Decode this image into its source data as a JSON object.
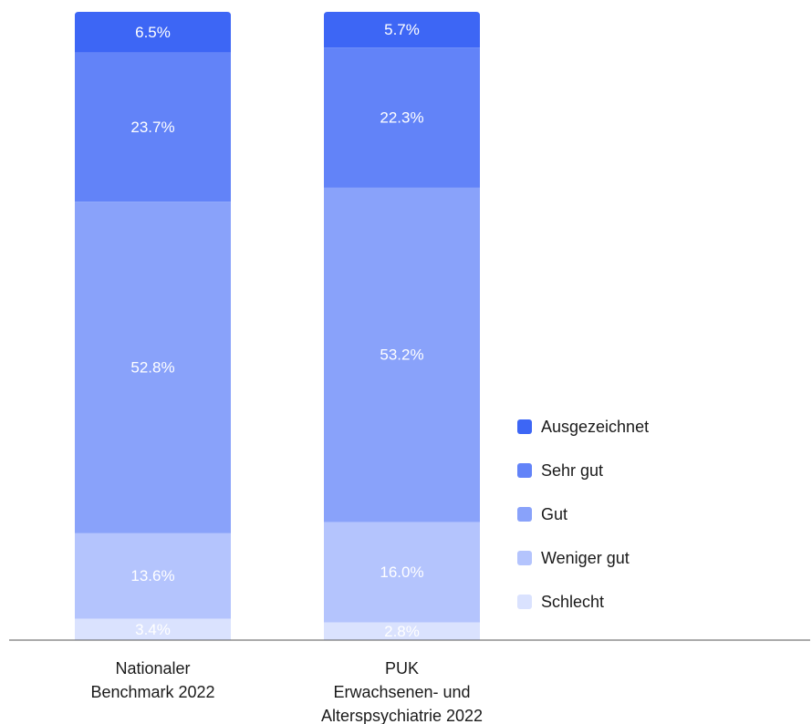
{
  "chart_data": {
    "type": "bar",
    "stacked": true,
    "categories": [
      [
        "Nationaler",
        "Benchmark 2022"
      ],
      [
        "PUK",
        "Erwachsenen- und",
        "Alterspsychiatrie 2022"
      ]
    ],
    "series": [
      {
        "name": "Ausgezeichnet",
        "color": "#3d66f5",
        "values": [
          6.5,
          5.7
        ],
        "labels": [
          "6.5%",
          "5.7%"
        ]
      },
      {
        "name": "Sehr gut",
        "color": "#6283f8",
        "values": [
          23.7,
          22.3
        ],
        "labels": [
          "23.7%",
          "22.3%"
        ]
      },
      {
        "name": "Gut",
        "color": "#89a2fa",
        "values": [
          52.8,
          53.2
        ],
        "labels": [
          "52.8%",
          "53.2%"
        ]
      },
      {
        "name": "Weniger gut",
        "color": "#b4c4fd",
        "values": [
          13.6,
          16.0
        ],
        "labels": [
          "13.6%",
          "16.0%"
        ]
      },
      {
        "name": "Schlecht",
        "color": "#dae2fe",
        "values": [
          3.4,
          2.8
        ],
        "labels": [
          "3.4%",
          "2.8%"
        ]
      }
    ],
    "ylim": [
      0,
      100
    ],
    "legend_position": "right",
    "grid": false,
    "xlabel": "",
    "ylabel": ""
  }
}
